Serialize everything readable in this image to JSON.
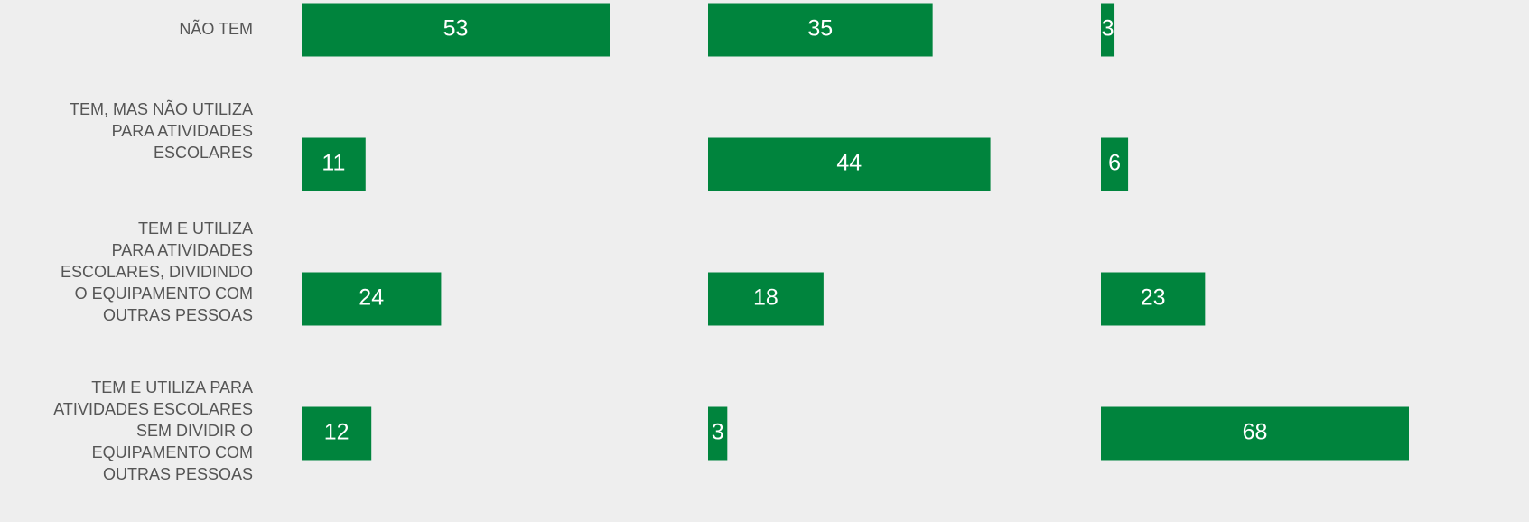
{
  "chart_data": [
    {
      "type": "bar",
      "orientation": "horizontal",
      "color": "#00843d",
      "categories": [
        "NÃO TEM",
        "TEM, MAS NÃO UTILIZA\nPARA ATIVIDADES\nESCOLARES",
        "TEM E UTILIZA\nPARA ATIVIDADES\nESCOLARES, DIVIDINDO\nO EQUIPAMENTO COM\nOUTRAS PESSOAS",
        "TEM E UTILIZA PARA\nATIVIDADES ESCOLARES\nSEM DIVIDIR O\nEQUIPAMENTO COM\nOUTRAS PESSOAS"
      ],
      "values": [
        53,
        11,
        24,
        12
      ],
      "xlim": [
        0,
        53
      ]
    },
    {
      "type": "bar",
      "orientation": "horizontal",
      "color": "#00843d",
      "values": [
        35,
        44,
        18,
        3
      ],
      "xlim": [
        0,
        48
      ]
    },
    {
      "type": "bar",
      "orientation": "horizontal",
      "color": "#00843d",
      "values": [
        3,
        6,
        23,
        68
      ],
      "xlim": [
        0,
        68
      ]
    }
  ]
}
